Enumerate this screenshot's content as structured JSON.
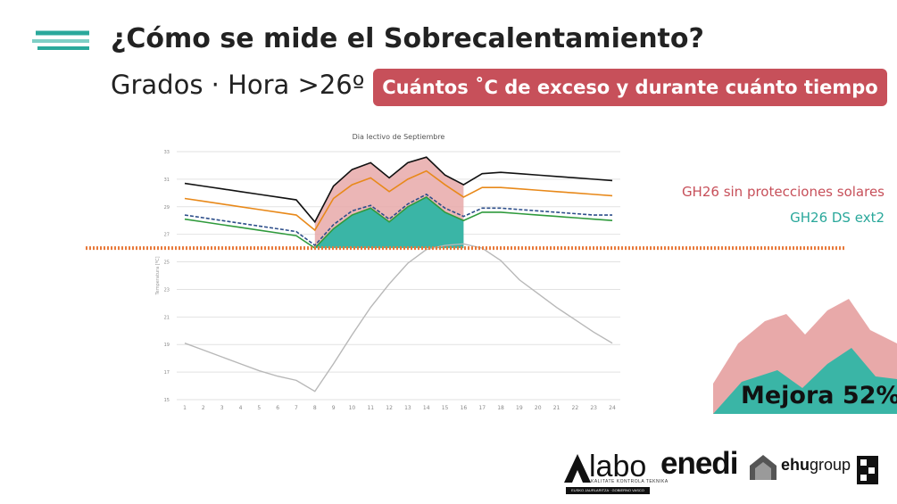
{
  "slide": {
    "title": "¿Cómo se mide el Sobrecalentamiento?",
    "subtitle": "Grados · Hora >26º",
    "highlight": "Cuántos ˚C de exceso y durante cuánto tiempo",
    "legend_red": "GH26 sin protecciones solares",
    "legend_teal": "GH26 DS ext2",
    "improvement": "Mejora 52%",
    "colors": {
      "red": "#c7505a",
      "teal": "#2aa89b",
      "pink_fill": "#e8a9a9",
      "orange_threshold": "#e8793a"
    }
  },
  "logos": {
    "labo": "labo",
    "labo_sub": "KALITATE KONTROLA TEKNIKA",
    "labo_sub2": "EUSKO JAURLARITZA · GOBIERNO VASCO",
    "enedi": "enedi",
    "ehu_bold": "ehu",
    "ehu_rest": "group"
  },
  "chart_data": {
    "type": "line",
    "title": "Dia lectivo de Septiembre",
    "ylabel": "Temperatura [ºC]",
    "xlabel": "",
    "ylim": [
      15,
      33
    ],
    "yticks": [
      15,
      17,
      19,
      21,
      23,
      25,
      27,
      29,
      31,
      33
    ],
    "x": [
      1,
      2,
      3,
      4,
      5,
      6,
      7,
      8,
      9,
      10,
      11,
      12,
      13,
      14,
      15,
      16,
      17,
      18,
      19,
      20,
      21,
      22,
      23,
      24
    ],
    "threshold": 26,
    "fill_range": [
      8,
      16
    ],
    "series": [
      {
        "name": "Sin protecciones (black)",
        "color": "#111111",
        "values": [
          30.7,
          30.5,
          30.3,
          30.1,
          29.9,
          29.7,
          29.5,
          27.9,
          30.5,
          31.7,
          32.2,
          31.1,
          32.2,
          32.6,
          31.3,
          30.6,
          31.4,
          31.5,
          31.4,
          31.3,
          31.2,
          31.1,
          31.0,
          30.9
        ]
      },
      {
        "name": "Orange",
        "color": "#e8891a",
        "values": [
          29.6,
          29.4,
          29.2,
          29.0,
          28.8,
          28.6,
          28.4,
          27.3,
          29.6,
          30.6,
          31.1,
          30.1,
          31.0,
          31.6,
          30.6,
          29.7,
          30.4,
          30.4,
          30.3,
          30.2,
          30.1,
          30.0,
          29.9,
          29.8
        ]
      },
      {
        "name": "Blue dashed",
        "color": "#2d4e8a",
        "values": [
          28.4,
          28.2,
          28.0,
          27.8,
          27.6,
          27.4,
          27.2,
          26.2,
          27.7,
          28.7,
          29.1,
          28.1,
          29.2,
          29.9,
          28.9,
          28.3,
          28.9,
          28.9,
          28.8,
          28.7,
          28.6,
          28.5,
          28.4,
          28.4
        ]
      },
      {
        "name": "Green",
        "color": "#2f9a3c",
        "values": [
          28.1,
          27.9,
          27.7,
          27.5,
          27.3,
          27.1,
          26.9,
          26.0,
          27.4,
          28.4,
          28.9,
          27.9,
          29.0,
          29.7,
          28.6,
          28.0,
          28.6,
          28.6,
          28.5,
          28.4,
          28.3,
          28.2,
          28.1,
          28.0
        ]
      },
      {
        "name": "Exterior (grey)",
        "color": "#b8b8b8",
        "values": [
          19.1,
          18.6,
          18.1,
          17.6,
          17.1,
          16.7,
          16.4,
          15.6,
          17.6,
          19.7,
          21.7,
          23.4,
          24.9,
          25.9,
          26.2,
          26.3,
          26.0,
          25.1,
          23.7,
          22.7,
          21.7,
          20.8,
          19.9,
          19.1
        ]
      }
    ],
    "improvement_percent": 52
  }
}
